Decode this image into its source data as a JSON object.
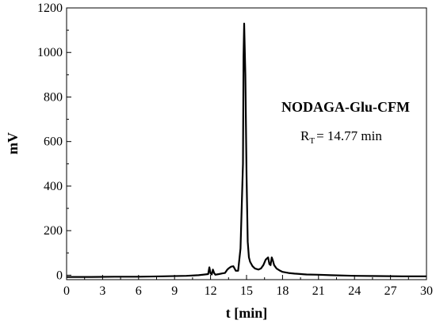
{
  "chart_data": {
    "type": "line",
    "title": "",
    "xlabel": "t [min]",
    "ylabel": "mV",
    "xlim": [
      0,
      30
    ],
    "ylim": [
      -20,
      1200
    ],
    "x_ticks": [
      0,
      3,
      6,
      9,
      12,
      15,
      18,
      21,
      24,
      27,
      30
    ],
    "y_ticks": [
      0,
      200,
      400,
      600,
      800,
      1000,
      1200
    ],
    "grid": false,
    "legend": "none",
    "line_color": "#000000",
    "annotations": {
      "compound": "NODAGA-Glu-CFM",
      "rt_prefix": "R",
      "rt_subscript": "T",
      "rt_value": "= 14.77 min"
    },
    "series": [
      {
        "x": [
          0,
          2,
          4,
          6,
          8,
          10,
          11,
          11.8,
          11.9,
          12.0,
          12.1,
          12.2,
          12.3,
          12.4,
          12.5,
          12.7,
          13.0,
          13.2,
          13.4,
          13.5,
          13.7,
          13.9,
          14.1,
          14.3,
          14.5,
          14.7,
          14.75,
          14.8,
          14.9,
          15.0,
          15.1,
          15.2,
          15.3,
          15.5,
          15.7,
          16.0,
          16.2,
          16.4,
          16.6,
          16.8,
          16.9,
          17.0,
          17.1,
          17.2,
          17.3,
          17.5,
          17.8,
          18.0,
          18.5,
          19.0,
          20.0,
          21.0,
          22.0,
          24.0,
          26.0,
          28.0,
          30.0
        ],
        "values": [
          -8,
          -8,
          -7,
          -7,
          -5,
          -3,
          0,
          5,
          35,
          8,
          3,
          25,
          10,
          2,
          3,
          5,
          8,
          10,
          25,
          30,
          38,
          40,
          20,
          20,
          120,
          500,
          980,
          1130,
          900,
          450,
          150,
          80,
          60,
          40,
          30,
          25,
          30,
          45,
          70,
          80,
          50,
          45,
          80,
          65,
          45,
          30,
          20,
          15,
          10,
          7,
          3,
          2,
          0,
          -3,
          -4,
          -5,
          -5
        ]
      }
    ]
  }
}
